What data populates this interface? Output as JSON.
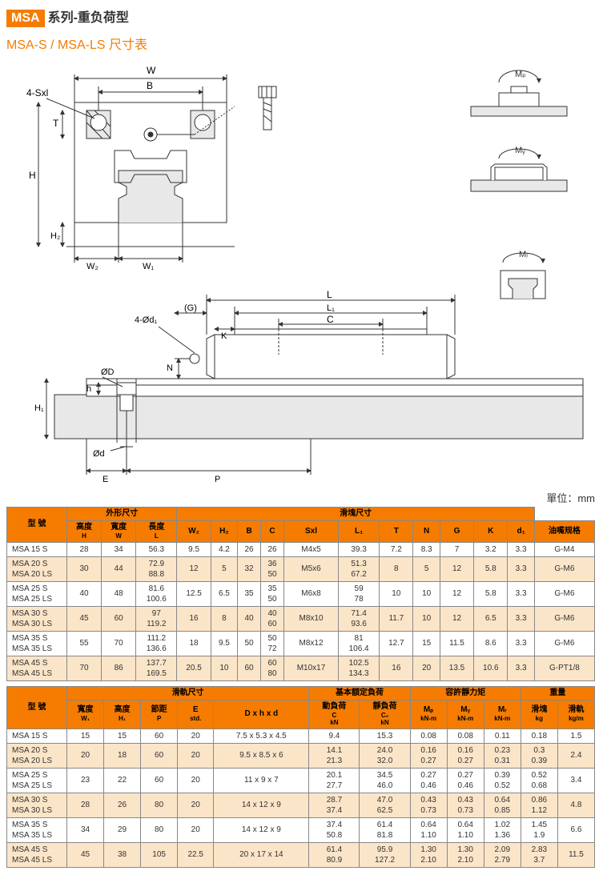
{
  "header": {
    "seriesLabel": "MSA",
    "seriesSuffix": "系列-重负荷型",
    "subtitle": "MSA-S / MSA-LS 尺寸表"
  },
  "unitLabel": "單位：mm",
  "diagramLabels": {
    "W": "W",
    "B": "B",
    "fourSxl": "4-Sxl",
    "T": "T",
    "H": "H",
    "H2sub": "H₂",
    "W2": "W₂",
    "W1": "W₁",
    "G": "(G)",
    "L": "L",
    "L1": "L₁",
    "C": "C",
    "fourD1": "4-Ød₁",
    "K": "K",
    "N": "N",
    "phiD": "ØD",
    "h": "h",
    "H1": "H₁",
    "phid": "Ød",
    "E": "E",
    "P": "P",
    "Mp": "Mₚ",
    "My": "Mᵧ",
    "Mr": "Mᵣ"
  },
  "table1": {
    "groupHeaders": {
      "model": "型 號",
      "outer": "外形尺寸",
      "block": "滑塊尺寸"
    },
    "cols": {
      "H": "高度",
      "Hs": "H",
      "W": "寬度",
      "Ws": "W",
      "Llen": "長度",
      "Ls": "L",
      "W2": "W₂",
      "H2": "H₂",
      "B": "B",
      "C": "C",
      "Sxl": "Sxl",
      "L1": "L₁",
      "T": "T",
      "N": "N",
      "G": "G",
      "K": "K",
      "d1": "d₁",
      "oil": "油嘴规格"
    },
    "rows": [
      {
        "m": [
          "MSA 15 S"
        ],
        "H": "28",
        "W": "34",
        "L": "56.3",
        "W2": "9.5",
        "H2": "4.2",
        "B": "26",
        "C": "26",
        "S": "M4x5",
        "L1": "39.3",
        "T": "7.2",
        "N": "8.3",
        "G": "7",
        "K": "3.2",
        "d1": "3.3",
        "oil": "G-M4",
        "alt": 0
      },
      {
        "m": [
          "MSA 20 S",
          "MSA 20 LS"
        ],
        "H": "30",
        "W": "44",
        "L": "72.9<br>88.8",
        "W2": "12",
        "H2": "5",
        "B": "32",
        "C": "36<br>50",
        "S": "M5x6",
        "L1": "51.3<br>67.2",
        "T": "8",
        "N": "5",
        "G": "12",
        "K": "5.8",
        "d1": "3.3",
        "oil": "G-M6",
        "alt": 1
      },
      {
        "m": [
          "MSA 25 S",
          "MSA 25 LS"
        ],
        "H": "40",
        "W": "48",
        "L": "81.6<br>100.6",
        "W2": "12.5",
        "H2": "6.5",
        "B": "35",
        "C": "35<br>50",
        "S": "M6x8",
        "L1": "59<br>78",
        "T": "10",
        "N": "10",
        "G": "12",
        "K": "5.8",
        "d1": "3.3",
        "oil": "G-M6",
        "alt": 0
      },
      {
        "m": [
          "MSA 30 S",
          "MSA 30 LS"
        ],
        "H": "45",
        "W": "60",
        "L": "97<br>119.2",
        "W2": "16",
        "H2": "8",
        "B": "40",
        "C": "40<br>60",
        "S": "M8x10",
        "L1": "71.4<br>93.6",
        "T": "11.7",
        "N": "10",
        "G": "12",
        "K": "6.5",
        "d1": "3.3",
        "oil": "G-M6",
        "alt": 1
      },
      {
        "m": [
          "MSA 35 S",
          "MSA 35 LS"
        ],
        "H": "55",
        "W": "70",
        "L": "111.2<br>136.6",
        "W2": "18",
        "H2": "9.5",
        "B": "50",
        "C": "50<br>72",
        "S": "M8x12",
        "L1": "81<br>106.4",
        "T": "12.7",
        "N": "15",
        "G": "11.5",
        "K": "8.6",
        "d1": "3.3",
        "oil": "G-M6",
        "alt": 0
      },
      {
        "m": [
          "MSA 45 S",
          "MSA 45 LS"
        ],
        "H": "70",
        "W": "86",
        "L": "137.7<br>169.5",
        "W2": "20.5",
        "H2": "10",
        "B": "60",
        "C": "60<br>80",
        "S": "M10x17",
        "L1": "102.5<br>134.3",
        "T": "16",
        "N": "20",
        "G": "13.5",
        "K": "10.6",
        "d1": "3.3",
        "oil": "G-PT1/8",
        "alt": 1
      }
    ]
  },
  "table2": {
    "groupHeaders": {
      "model": "型 號",
      "rail": "滑軌尺寸",
      "basic": "基本額定負荷",
      "moment": "容許靜力矩",
      "weight": "重量"
    },
    "cols": {
      "W1": "寬度",
      "W1s": "W₁",
      "H1": "高度",
      "H1s": "H₁",
      "P": "節距",
      "Ps": "P",
      "E": "E",
      "Es": "std.",
      "D": "D x h x d",
      "Cdyn": "動負荷",
      "Cdyns": "C",
      "CdynU": "kN",
      "C0": "靜負荷",
      "C0s": "C₀",
      "C0U": "kN",
      "Mp": "Mₚ",
      "MpU": "kN-m",
      "My": "Mᵧ",
      "MyU": "kN-m",
      "Mr": "Mᵣ",
      "MrU": "kN-m",
      "bw": "滑塊",
      "bwU": "kg",
      "rw": "滑軌",
      "rwU": "kg/m"
    },
    "rows": [
      {
        "m": [
          "MSA 15 S"
        ],
        "W1": "15",
        "H1": "15",
        "P": "60",
        "E": "20",
        "D": "7.5 x 5.3 x 4.5",
        "C": "9.4",
        "C0": "15.3",
        "Mp": "0.08",
        "My": "0.08",
        "Mr": "0.11",
        "bw": "0.18",
        "rw": "1.5",
        "alt": 0
      },
      {
        "m": [
          "MSA 20 S",
          "MSA 20 LS"
        ],
        "W1": "20",
        "H1": "18",
        "P": "60",
        "E": "20",
        "D": "9.5 x 8.5 x 6",
        "C": "14.1<br>21.3",
        "C0": "24.0<br>32.0",
        "Mp": "0.16<br>0.27",
        "My": "0.16<br>0.27",
        "Mr": "0.23<br>0.31",
        "bw": "0.3<br>0.39",
        "rw": "2.4",
        "alt": 1
      },
      {
        "m": [
          "MSA 25 S",
          "MSA 25 LS"
        ],
        "W1": "23",
        "H1": "22",
        "P": "60",
        "E": "20",
        "D": "11 x 9 x 7",
        "C": "20.1<br>27.7",
        "C0": "34.5<br>46.0",
        "Mp": "0.27<br>0.46",
        "My": "0.27<br>0.46",
        "Mr": "0.39<br>0.52",
        "bw": "0.52<br>0.68",
        "rw": "3.4",
        "alt": 0
      },
      {
        "m": [
          "MSA 30 S",
          "MSA 30 LS"
        ],
        "W1": "28",
        "H1": "26",
        "P": "80",
        "E": "20",
        "D": "14 x 12 x 9",
        "C": "28.7<br>37.4",
        "C0": "47.0<br>62.5",
        "Mp": "0.43<br>0.73",
        "My": "0.43<br>0.73",
        "Mr": "0.64<br>0.85",
        "bw": "0.86<br>1.12",
        "rw": "4.8",
        "alt": 1
      },
      {
        "m": [
          "MSA 35 S",
          "MSA 35 LS"
        ],
        "W1": "34",
        "H1": "29",
        "P": "80",
        "E": "20",
        "D": "14 x 12 x 9",
        "C": "37.4<br>50.8",
        "C0": "61.4<br>81.8",
        "Mp": "0.64<br>1.10",
        "My": "0.64<br>1.10",
        "Mr": "1.02<br>1.36",
        "bw": "1.45<br>1.9",
        "rw": "6.6",
        "alt": 0
      },
      {
        "m": [
          "MSA 45 S",
          "MSA 45 LS"
        ],
        "W1": "45",
        "H1": "38",
        "P": "105",
        "E": "22.5",
        "D": "20 x 17 x 14",
        "C": "61.4<br>80.9",
        "C0": "95.9<br>127.2",
        "Mp": "1.30<br>2.10",
        "My": "1.30<br>2.10",
        "Mr": "2.09<br>2.79",
        "bw": "2.83<br>3.7",
        "rw": "11.5",
        "alt": 1
      }
    ]
  },
  "colors": {
    "orange": "#f57c00",
    "rowAlt": "#fbe5c8",
    "line": "#333333",
    "fillLight": "#e8e8e8"
  }
}
